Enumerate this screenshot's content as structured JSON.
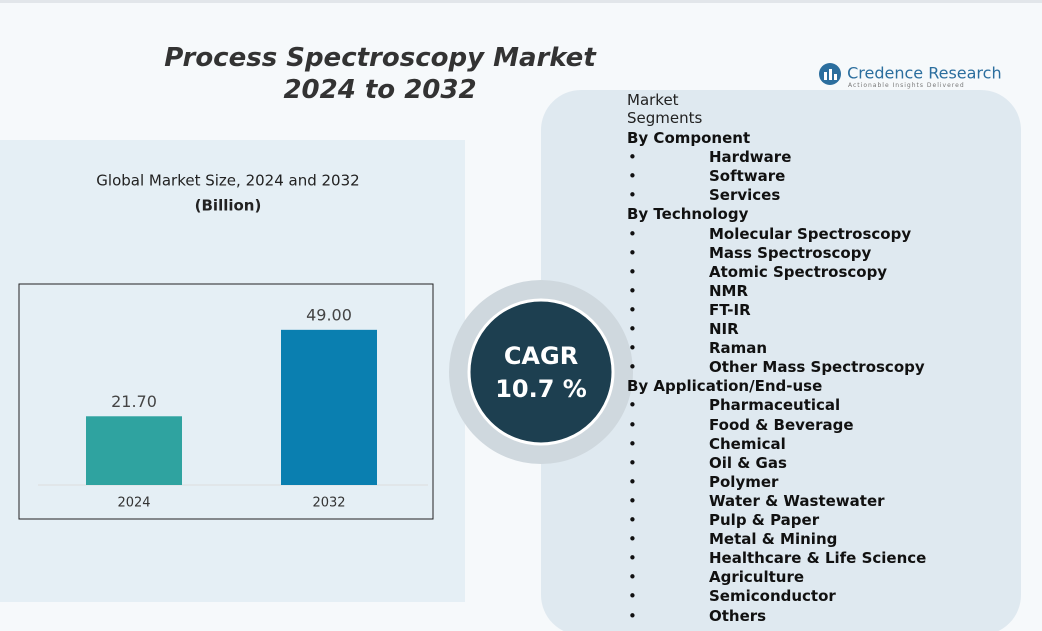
{
  "header": {
    "title_line1": "Process Spectroscopy Market",
    "title_line2": "2024 to 2032"
  },
  "logo": {
    "name": "Credence Research",
    "tagline": "Actionable Insights Delivered"
  },
  "chart_data": {
    "type": "bar",
    "title": "Global Market Size, 2024 and 2032",
    "subtitle": "(Billion)",
    "categories": [
      "2024",
      "2032"
    ],
    "values": [
      21.7,
      49.0
    ],
    "value_labels": [
      "21.70",
      "49.00"
    ],
    "colors": [
      "#2fa3a0",
      "#0a7fb0"
    ],
    "ylim": [
      0,
      60
    ]
  },
  "cagr": {
    "label": "CAGR",
    "value": "10.7 %"
  },
  "segments": {
    "title": "Market Segments",
    "groups": [
      {
        "name": "By Component",
        "items": [
          "Hardware",
          "Software",
          "Services"
        ]
      },
      {
        "name": "By Technology",
        "items": [
          "Molecular Spectroscopy",
          "Mass Spectroscopy",
          "Atomic Spectroscopy",
          "NMR",
          "FT-IR",
          "NIR",
          "Raman",
          "Other Mass Spectroscopy"
        ]
      },
      {
        "name": "By Application/End-use",
        "items": [
          "Pharmaceutical",
          "Food & Beverage",
          "Chemical",
          "Oil & Gas",
          "Polymer",
          "Water & Wastewater",
          "Pulp & Paper",
          "Metal & Mining",
          "Healthcare & Life Science",
          "Agriculture",
          "Semiconductor",
          "Others"
        ]
      }
    ]
  }
}
